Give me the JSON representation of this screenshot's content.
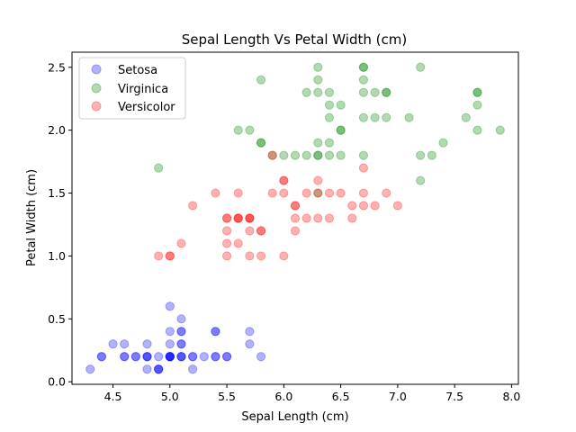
{
  "chart_data": {
    "type": "scatter",
    "title": "Sepal Length Vs Petal Width (cm)",
    "xlabel": "Sepal Length (cm)",
    "ylabel": "Petal Width (cm)",
    "xlim": [
      4.14,
      8.06
    ],
    "ylim": [
      -0.02,
      2.62
    ],
    "xticks": [
      "4.5",
      "5.0",
      "5.5",
      "6.0",
      "6.5",
      "7.0",
      "7.5",
      "8.0"
    ],
    "yticks": [
      "0.0",
      "0.5",
      "1.0",
      "1.5",
      "2.0",
      "2.5"
    ],
    "grid": false,
    "legend_position": "top-left",
    "series": [
      {
        "name": "Setosa",
        "color": "#0000ff",
        "points": [
          [
            4.3,
            0.1
          ],
          [
            4.4,
            0.2
          ],
          [
            4.4,
            0.2
          ],
          [
            4.5,
            0.3
          ],
          [
            4.6,
            0.2
          ],
          [
            4.6,
            0.3
          ],
          [
            4.6,
            0.2
          ],
          [
            4.7,
            0.2
          ],
          [
            4.7,
            0.2
          ],
          [
            4.8,
            0.1
          ],
          [
            4.8,
            0.2
          ],
          [
            4.8,
            0.3
          ],
          [
            4.8,
            0.2
          ],
          [
            4.8,
            0.2
          ],
          [
            4.9,
            0.1
          ],
          [
            4.9,
            0.1
          ],
          [
            4.9,
            0.2
          ],
          [
            4.9,
            0.1
          ],
          [
            5.0,
            0.2
          ],
          [
            5.0,
            0.2
          ],
          [
            5.0,
            0.2
          ],
          [
            5.0,
            0.2
          ],
          [
            5.0,
            0.3
          ],
          [
            5.0,
            0.4
          ],
          [
            5.0,
            0.6
          ],
          [
            5.0,
            0.2
          ],
          [
            5.1,
            0.2
          ],
          [
            5.1,
            0.4
          ],
          [
            5.1,
            0.3
          ],
          [
            5.1,
            0.3
          ],
          [
            5.1,
            0.2
          ],
          [
            5.1,
            0.4
          ],
          [
            5.1,
            0.5
          ],
          [
            5.1,
            0.2
          ],
          [
            5.2,
            0.2
          ],
          [
            5.2,
            0.1
          ],
          [
            5.2,
            0.2
          ],
          [
            5.3,
            0.2
          ],
          [
            5.4,
            0.4
          ],
          [
            5.4,
            0.2
          ],
          [
            5.4,
            0.4
          ],
          [
            5.4,
            0.2
          ],
          [
            5.5,
            0.2
          ],
          [
            5.5,
            0.2
          ],
          [
            5.7,
            0.4
          ],
          [
            5.7,
            0.3
          ],
          [
            5.8,
            0.2
          ]
        ]
      },
      {
        "name": "Virginica",
        "color": "#008000",
        "points": [
          [
            4.9,
            1.7
          ],
          [
            5.6,
            2.0
          ],
          [
            5.7,
            2.0
          ],
          [
            5.8,
            2.4
          ],
          [
            5.8,
            1.9
          ],
          [
            5.8,
            1.9
          ],
          [
            5.9,
            1.8
          ],
          [
            6.0,
            1.8
          ],
          [
            6.1,
            1.8
          ],
          [
            6.2,
            2.3
          ],
          [
            6.2,
            1.8
          ],
          [
            6.3,
            2.5
          ],
          [
            6.3,
            2.4
          ],
          [
            6.3,
            1.8
          ],
          [
            6.3,
            1.8
          ],
          [
            6.3,
            1.9
          ],
          [
            6.3,
            2.3
          ],
          [
            6.3,
            1.5
          ],
          [
            6.4,
            2.3
          ],
          [
            6.4,
            2.2
          ],
          [
            6.4,
            2.1
          ],
          [
            6.4,
            1.9
          ],
          [
            6.4,
            1.8
          ],
          [
            6.5,
            2.0
          ],
          [
            6.5,
            2.0
          ],
          [
            6.5,
            2.2
          ],
          [
            6.5,
            1.8
          ],
          [
            6.7,
            2.5
          ],
          [
            6.7,
            2.4
          ],
          [
            6.7,
            2.3
          ],
          [
            6.7,
            2.1
          ],
          [
            6.7,
            1.8
          ],
          [
            6.7,
            2.5
          ],
          [
            6.8,
            2.3
          ],
          [
            6.8,
            2.1
          ],
          [
            6.9,
            2.3
          ],
          [
            6.9,
            2.3
          ],
          [
            6.9,
            2.1
          ],
          [
            7.1,
            2.1
          ],
          [
            7.2,
            2.5
          ],
          [
            7.2,
            1.8
          ],
          [
            7.2,
            1.6
          ],
          [
            7.3,
            1.8
          ],
          [
            7.4,
            1.9
          ],
          [
            7.6,
            2.1
          ],
          [
            7.7,
            2.3
          ],
          [
            7.7,
            2.3
          ],
          [
            7.7,
            2.2
          ],
          [
            7.7,
            2.0
          ],
          [
            7.9,
            2.0
          ]
        ]
      },
      {
        "name": "Versicolor",
        "color": "#ff0000",
        "points": [
          [
            4.9,
            1.0
          ],
          [
            5.0,
            1.0
          ],
          [
            5.0,
            1.0
          ],
          [
            5.1,
            1.1
          ],
          [
            5.2,
            1.4
          ],
          [
            5.4,
            1.5
          ],
          [
            5.5,
            1.3
          ],
          [
            5.5,
            1.3
          ],
          [
            5.5,
            1.2
          ],
          [
            5.5,
            1.1
          ],
          [
            5.5,
            1.0
          ],
          [
            5.6,
            1.3
          ],
          [
            5.6,
            1.3
          ],
          [
            5.6,
            1.5
          ],
          [
            5.6,
            1.1
          ],
          [
            5.6,
            1.3
          ],
          [
            5.7,
            1.3
          ],
          [
            5.7,
            1.3
          ],
          [
            5.7,
            1.2
          ],
          [
            5.7,
            1.0
          ],
          [
            5.7,
            1.3
          ],
          [
            5.8,
            1.2
          ],
          [
            5.8,
            1.2
          ],
          [
            5.8,
            1.0
          ],
          [
            5.9,
            1.5
          ],
          [
            5.9,
            1.8
          ],
          [
            6.0,
            1.6
          ],
          [
            6.0,
            1.6
          ],
          [
            6.0,
            1.5
          ],
          [
            6.0,
            1.0
          ],
          [
            6.1,
            1.4
          ],
          [
            6.1,
            1.4
          ],
          [
            6.1,
            1.3
          ],
          [
            6.1,
            1.2
          ],
          [
            6.2,
            1.5
          ],
          [
            6.2,
            1.3
          ],
          [
            6.3,
            1.6
          ],
          [
            6.3,
            1.5
          ],
          [
            6.3,
            1.3
          ],
          [
            6.4,
            1.5
          ],
          [
            6.4,
            1.3
          ],
          [
            6.5,
            1.5
          ],
          [
            6.6,
            1.4
          ],
          [
            6.6,
            1.3
          ],
          [
            6.7,
            1.7
          ],
          [
            6.7,
            1.5
          ],
          [
            6.7,
            1.4
          ],
          [
            6.8,
            1.4
          ],
          [
            6.9,
            1.5
          ],
          [
            7.0,
            1.4
          ]
        ]
      }
    ]
  }
}
